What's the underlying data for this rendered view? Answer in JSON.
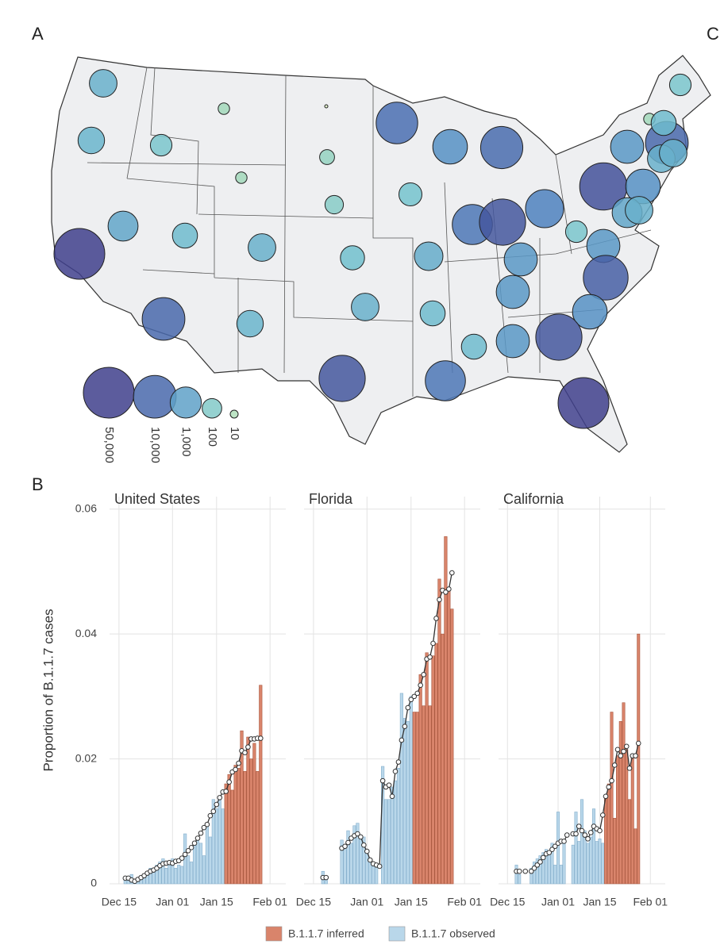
{
  "chart_data": [
    {
      "type": "bubble-map",
      "panel_label": "A",
      "values": [
        500,
        400,
        150,
        20,
        2,
        8000,
        2000,
        9000,
        40,
        20,
        80,
        200,
        50000,
        800,
        300,
        500,
        250,
        600,
        6000,
        20000,
        4000,
        25000,
        1500,
        20,
        150,
        10000,
        500,
        500,
        2000,
        800,
        500,
        150,
        1500,
        1500,
        1500,
        15000,
        2000,
        20000,
        10000,
        400,
        500,
        300,
        20000,
        6000,
        300,
        1500,
        50000,
        300
      ],
      "color_scale": [
        "#eef5c6",
        "#a8dbb9",
        "#72c2cf",
        "#4f86c2",
        "#3f3f8c"
      ],
      "size_legend": {
        "values": [
          50000,
          10000,
          1000,
          100,
          10
        ],
        "value_labels": [
          "50,000",
          "10,000",
          "1,000",
          "100",
          "10"
        ]
      }
    },
    {
      "type": "bar",
      "panel_label": "B",
      "y_label": "Proportion of B.1.1.7 cases",
      "ylim": [
        0,
        0.062
      ],
      "yticks": [
        0,
        0.02,
        0.04,
        0.06
      ],
      "grid": true,
      "xlim": [
        "Dec 12",
        "Feb 06"
      ],
      "xticks": [
        "Dec 15",
        "Jan 01",
        "Jan 15",
        "Feb 01"
      ],
      "legend": [
        {
          "name": "B.1.1.7 inferred",
          "color": "#d9846b"
        },
        {
          "name": "B.1.1.7 observed",
          "color": "#b9d7ea"
        }
      ],
      "line_color": "#333333",
      "facets": [
        {
          "title": "United States",
          "x": [
            "Dec 17",
            "Dec 18",
            "Dec 19",
            "Dec 20",
            "Dec 21",
            "Dec 22",
            "Dec 23",
            "Dec 24",
            "Dec 25",
            "Dec 26",
            "Dec 27",
            "Dec 28",
            "Dec 29",
            "Dec 30",
            "Dec 31",
            "Jan 01",
            "Jan 02",
            "Jan 03",
            "Jan 04",
            "Jan 05",
            "Jan 06",
            "Jan 07",
            "Jan 08",
            "Jan 09",
            "Jan 10",
            "Jan 11",
            "Jan 12",
            "Jan 13",
            "Jan 14",
            "Jan 15",
            "Jan 16",
            "Jan 17",
            "Jan 18",
            "Jan 19",
            "Jan 20",
            "Jan 21",
            "Jan 22",
            "Jan 23",
            "Jan 24",
            "Jan 25",
            "Jan 26",
            "Jan 27",
            "Jan 28",
            "Jan 29"
          ],
          "observed": [
            0.001,
            0.0012,
            0.0015,
            0.0005,
            0.0008,
            0.001,
            0.0015,
            0.002,
            0.0025,
            0.0022,
            0.003,
            0.0035,
            0.004,
            0.0025,
            0.0035,
            0.004,
            0.0025,
            0.003,
            0.0028,
            0.008,
            0.0045,
            0.0035,
            0.0065,
            0.0072,
            0.0065,
            0.0045,
            0.0095,
            0.0075,
            0.0135,
            0.012,
            0.0135,
            0.012,
            null,
            null,
            null,
            null,
            null,
            null,
            null,
            null,
            null,
            null,
            null,
            null
          ],
          "inferred": [
            null,
            null,
            null,
            null,
            null,
            null,
            null,
            null,
            null,
            null,
            null,
            null,
            null,
            null,
            null,
            null,
            null,
            null,
            null,
            null,
            null,
            null,
            null,
            null,
            null,
            null,
            null,
            null,
            null,
            null,
            null,
            null,
            0.016,
            0.0175,
            0.015,
            0.019,
            0.0185,
            0.0245,
            0.018,
            0.0235,
            0.02,
            0.0225,
            0.018,
            0.0318
          ],
          "trend": [
            0.0009,
            0.0009,
            0.0006,
            0.0004,
            0.0007,
            0.001,
            0.0013,
            0.0017,
            0.002,
            0.0022,
            0.0025,
            0.0029,
            0.0032,
            0.0033,
            0.0034,
            0.0033,
            0.0036,
            0.0037,
            0.0041,
            0.0047,
            0.0053,
            0.0058,
            0.0065,
            0.0073,
            0.0081,
            0.009,
            0.0095,
            0.0109,
            0.0116,
            0.0127,
            0.0138,
            0.0147,
            0.0148,
            0.0163,
            0.0179,
            0.0183,
            0.0193,
            0.0213,
            0.021,
            0.0219,
            0.0232,
            0.0232,
            0.0233,
            0.0233
          ]
        },
        {
          "title": "Florida",
          "x": [
            "Dec 18",
            "Dec 19",
            "Dec 20",
            "Dec 21",
            "Dec 22",
            "Dec 23",
            "Dec 24",
            "Dec 25",
            "Dec 26",
            "Dec 27",
            "Dec 28",
            "Dec 29",
            "Dec 30",
            "Dec 31",
            "Jan 01",
            "Jan 02",
            "Jan 03",
            "Jan 04",
            "Jan 05",
            "Jan 06",
            "Jan 07",
            "Jan 08",
            "Jan 09",
            "Jan 10",
            "Jan 11",
            "Jan 12",
            "Jan 13",
            "Jan 14",
            "Jan 15",
            "Jan 16",
            "Jan 17",
            "Jan 18",
            "Jan 19",
            "Jan 20",
            "Jan 21",
            "Jan 22",
            "Jan 23",
            "Jan 24",
            "Jan 25",
            "Jan 26",
            "Jan 27",
            "Jan 28"
          ],
          "observed": [
            0.002,
            0.001,
            null,
            null,
            null,
            null,
            0.007,
            0.0055,
            0.0085,
            0.0065,
            0.0093,
            0.0097,
            0.0075,
            0.0075,
            0.0055,
            0.0035,
            0.003,
            0.0028,
            null,
            0.0188,
            0.0135,
            0.0135,
            0.0155,
            0.0165,
            0.0185,
            0.0305,
            0.0265,
            0.026,
            0.03,
            null,
            null,
            null,
            null,
            null,
            null,
            null,
            null,
            null,
            null,
            null,
            null,
            null
          ],
          "inferred": [
            null,
            null,
            null,
            null,
            null,
            null,
            null,
            null,
            null,
            null,
            null,
            null,
            null,
            null,
            null,
            null,
            null,
            null,
            null,
            null,
            null,
            null,
            null,
            null,
            null,
            null,
            null,
            null,
            null,
            0.0275,
            0.0275,
            0.0335,
            0.0285,
            0.037,
            0.0285,
            0.0365,
            0.0385,
            0.0488,
            0.04,
            0.0556,
            0.047,
            0.044
          ],
          "trend": [
            0.001,
            0.001,
            null,
            null,
            null,
            null,
            0.0057,
            0.006,
            0.0066,
            0.0073,
            0.0077,
            0.008,
            0.0075,
            0.0062,
            0.0052,
            0.0038,
            0.0032,
            0.003,
            0.0028,
            0.0165,
            0.0155,
            0.0158,
            0.014,
            0.018,
            0.0195,
            0.023,
            0.0252,
            0.0282,
            0.0295,
            0.03,
            0.0305,
            0.0318,
            0.0335,
            0.036,
            0.0363,
            0.0385,
            0.0425,
            0.0455,
            0.047,
            0.0467,
            0.0472,
            0.0498
          ]
        },
        {
          "title": "California",
          "x": [
            "Dec 18",
            "Dec 19",
            "Dec 20",
            "Dec 21",
            "Dec 22",
            "Dec 23",
            "Dec 24",
            "Dec 25",
            "Dec 26",
            "Dec 27",
            "Dec 28",
            "Dec 29",
            "Dec 30",
            "Dec 31",
            "Jan 01",
            "Jan 02",
            "Jan 03",
            "Jan 04",
            "Jan 05",
            "Jan 06",
            "Jan 07",
            "Jan 08",
            "Jan 09",
            "Jan 10",
            "Jan 11",
            "Jan 12",
            "Jan 13",
            "Jan 14",
            "Jan 15",
            "Jan 16",
            "Jan 17",
            "Jan 18",
            "Jan 19",
            "Jan 20",
            "Jan 21",
            "Jan 22",
            "Jan 23",
            "Jan 24",
            "Jan 25",
            "Jan 26",
            "Jan 27",
            "Jan 28"
          ],
          "observed": [
            0.003,
            0.0015,
            null,
            null,
            null,
            0.0025,
            0.0035,
            0.004,
            0.0045,
            0.005,
            0.0055,
            0.0045,
            0.0065,
            0.003,
            0.0115,
            0.003,
            0.0065,
            null,
            null,
            0.0062,
            0.0115,
            0.0068,
            0.0135,
            0.0085,
            0.0065,
            0.0075,
            0.012,
            0.0068,
            0.0072,
            0.0065,
            null,
            null,
            null,
            null,
            null,
            null,
            null,
            null,
            null,
            null,
            null,
            null
          ],
          "inferred": [
            null,
            null,
            null,
            null,
            null,
            null,
            null,
            null,
            null,
            null,
            null,
            null,
            null,
            null,
            null,
            null,
            null,
            null,
            null,
            null,
            null,
            null,
            null,
            null,
            null,
            null,
            null,
            null,
            null,
            null,
            0.014,
            0.016,
            0.0275,
            0.0105,
            0.0205,
            0.026,
            0.029,
            0.0215,
            0.0135,
            0.0208,
            0.0088,
            0.04
          ],
          "trend": [
            0.002,
            0.002,
            null,
            0.002,
            null,
            0.002,
            0.0025,
            0.003,
            0.0035,
            0.0042,
            0.0048,
            0.005,
            0.0055,
            0.006,
            0.0065,
            0.0068,
            0.0068,
            0.0078,
            null,
            0.008,
            0.008,
            0.0092,
            0.0085,
            0.0078,
            0.0072,
            0.0082,
            0.0092,
            0.0088,
            0.0085,
            0.011,
            0.014,
            0.0155,
            0.0165,
            0.019,
            0.0215,
            0.0205,
            0.0212,
            0.022,
            0.0185,
            0.0205,
            0.0205,
            0.0225
          ]
        }
      ]
    }
  ],
  "panel_c": {
    "label": "C"
  }
}
